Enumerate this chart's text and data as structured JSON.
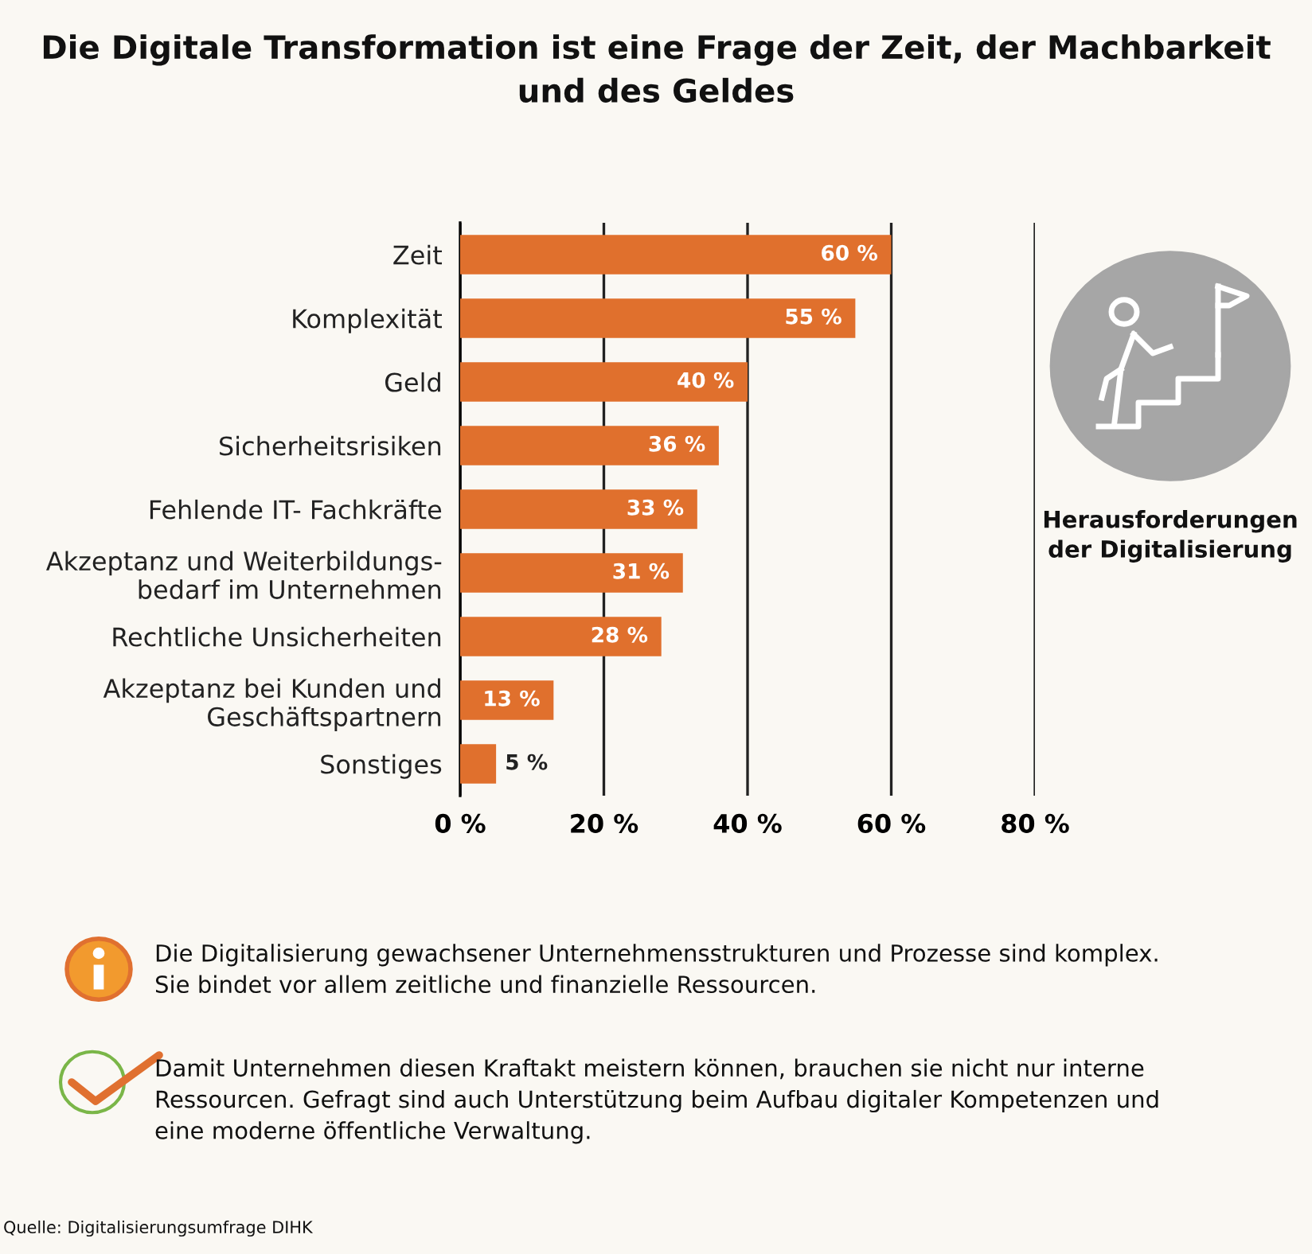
{
  "chart_data": {
    "type": "bar",
    "orientation": "horizontal",
    "title": "Die Digitale Transformation ist eine Frage der Zeit, der Machbarkeit\nund des Geldes",
    "categories": [
      "Zeit",
      "Komplexität",
      "Geld",
      "Sicherheitsrisiken",
      "Fehlende IT- Fachkräfte",
      "Akzeptanz und Weiterbildungs-\nbedarf im Unternehmen",
      "Rechtliche Unsicherheiten",
      "Akzeptanz bei Kunden und\nGeschäftspartnern",
      "Sonstiges"
    ],
    "values": [
      60,
      55,
      40,
      36,
      33,
      31,
      28,
      13,
      5
    ],
    "value_labels": [
      "60 %",
      "55 %",
      "40 %",
      "36 %",
      "33 %",
      "31 %",
      "28 %",
      "13 %",
      "5 %"
    ],
    "color": "#e0702d",
    "xlim": [
      0,
      80
    ],
    "xticks": [
      {
        "value": 0,
        "label": "0 %"
      },
      {
        "value": 20,
        "label": "20 %"
      },
      {
        "value": 40,
        "label": "40 %"
      },
      {
        "value": 60,
        "label": "60 %"
      },
      {
        "value": 80,
        "label": "80 %"
      }
    ],
    "grid": "x",
    "annotations": [
      "Herausforderungen\nder Digitalisierung",
      "Die Digitalisierung gewachsener Unternehmensstrukturen und Prozesse sind komplex.\nSie bindet vor allem zeitliche und finanzielle Ressourcen.",
      "Damit Unternehmen diesen Kraftakt meistern können, brauchen sie nicht nur interne\nRessourcen. Gefragt sind auch Unterstützung beim Aufbau digitaler Kompetenzen und\neine moderne öffentliche Verwaltung.",
      "Quelle: Digitalisierungsumfrage DIHK"
    ]
  }
}
